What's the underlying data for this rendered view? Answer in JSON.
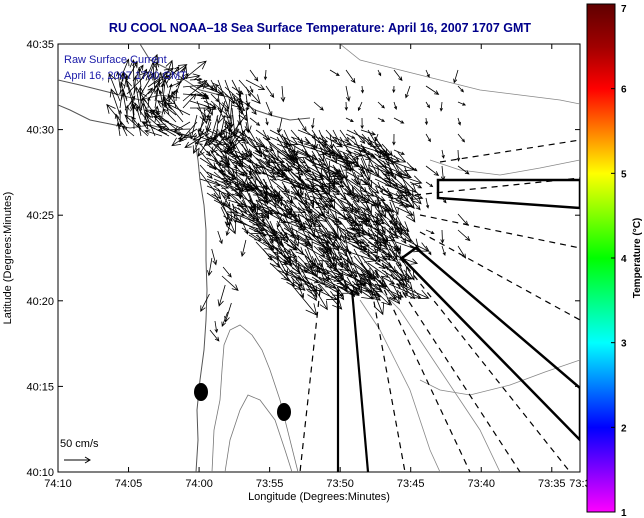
{
  "chart_data": {
    "type": "quiver-map",
    "title": "RU COOL  NOAA–18  Sea Surface Temperature:  April 16, 2007 1707 GMT",
    "xlabel": "Longitude (Degrees:Minutes)",
    "ylabel": "Latitude (Degrees:Minutes)",
    "xlim_minutes_west": [
      250,
      213
    ],
    "ylim_minutes_north": [
      2410,
      2435
    ],
    "x_ticks": [
      {
        "label": "74:10",
        "min": 250
      },
      {
        "label": "74:05",
        "min": 245
      },
      {
        "label": "74:00",
        "min": 240
      },
      {
        "label": "73:55",
        "min": 235
      },
      {
        "label": "73:50",
        "min": 230
      },
      {
        "label": "73:45",
        "min": 225
      },
      {
        "label": "73:40",
        "min": 220
      },
      {
        "label": "73:35",
        "min": 215
      },
      {
        "label": "73:3",
        "min": 213
      }
    ],
    "y_ticks": [
      {
        "label": "40:10",
        "min": 2410
      },
      {
        "label": "40:15",
        "min": 2415
      },
      {
        "label": "40:20",
        "min": 2420
      },
      {
        "label": "40:25",
        "min": 2425
      },
      {
        "label": "40:30",
        "min": 2430
      },
      {
        "label": "40:35",
        "min": 2435
      }
    ],
    "legend_lines": [
      "Raw Surface Current",
      "April 16, 2007 1700 GMT"
    ],
    "scale_label": "50 cm/s",
    "colorbar": {
      "label": "Temperature (°C)",
      "min": 1,
      "max": 7,
      "ticks": [
        "1",
        "2",
        "3",
        "4",
        "5",
        "6",
        "7"
      ],
      "colors": [
        "#ff00ff",
        "#7f00ff",
        "#0000ff",
        "#0080ff",
        "#00ffff",
        "#00ff80",
        "#00ff00",
        "#80ff00",
        "#ffff00",
        "#ff8000",
        "#ff0000",
        "#a00000",
        "#600000"
      ]
    },
    "markers": [
      {
        "x_min": 239.0,
        "y_min": 2414.3
      },
      {
        "x_min": 232.2,
        "y_min": 2413.3
      }
    ]
  }
}
